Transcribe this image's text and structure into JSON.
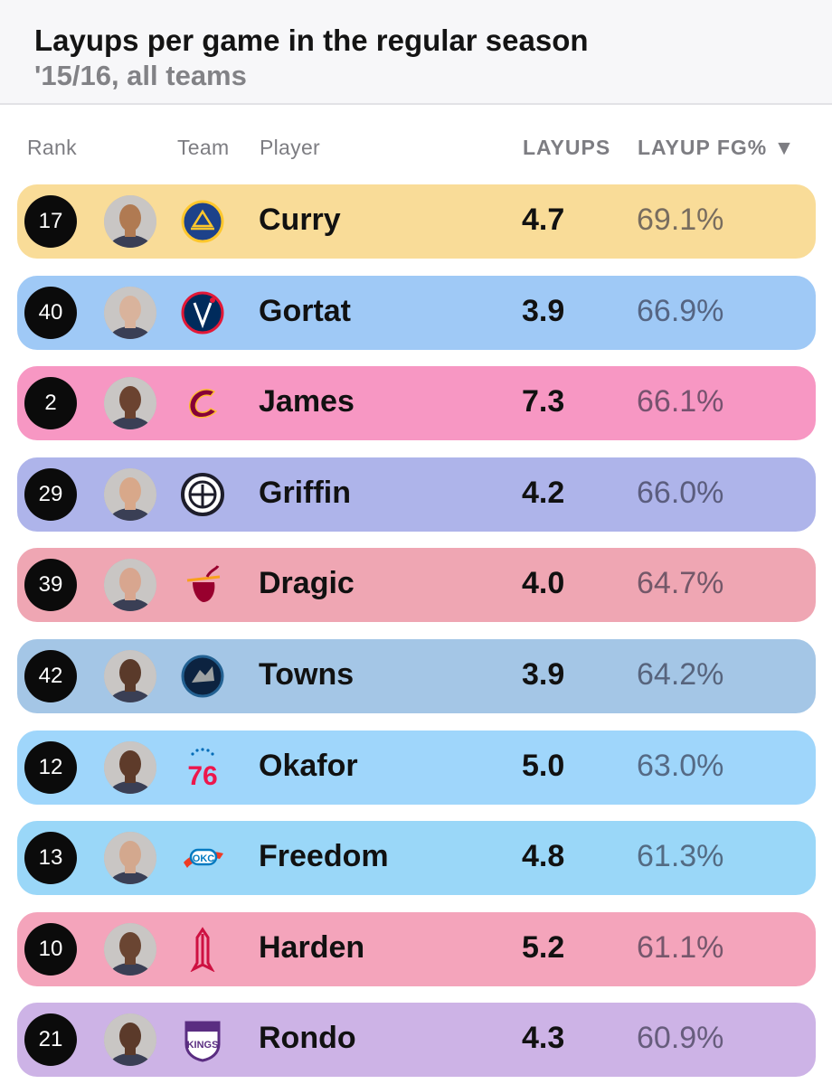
{
  "header": {
    "title": "Layups per game in the regular season",
    "subtitle": "'15/16, all teams"
  },
  "columns": {
    "rank": "Rank",
    "team": "Team",
    "player": "Player",
    "layups": "LAYUPS",
    "layup_fg": "LAYUP FG% ▼"
  },
  "rows": [
    {
      "rank": "17",
      "team_logo": "warriors-logo",
      "player": "Curry",
      "layups": "4.7",
      "layup_fg": "69.1%",
      "color": "#f9dc98",
      "logo_color": "#1d428a",
      "skin": "#b07a52"
    },
    {
      "rank": "40",
      "team_logo": "wizards-logo",
      "player": "Gortat",
      "layups": "3.9",
      "layup_fg": "66.9%",
      "color": "#9fc9f6",
      "logo_color": "#002b5c",
      "skin": "#d9b39c"
    },
    {
      "rank": "2",
      "team_logo": "cavaliers-logo",
      "player": "James",
      "layups": "7.3",
      "layup_fg": "66.1%",
      "color": "#f797c3",
      "logo_color": "#860038",
      "skin": "#6b4330"
    },
    {
      "rank": "29",
      "team_logo": "clippers-logo",
      "player": "Griffin",
      "layups": "4.2",
      "layup_fg": "66.0%",
      "color": "#aeb4ea",
      "logo_color": "#1d1d2b",
      "skin": "#d8a88a"
    },
    {
      "rank": "39",
      "team_logo": "heat-logo",
      "player": "Dragic",
      "layups": "4.0",
      "layup_fg": "64.7%",
      "color": "#efa6b3",
      "logo_color": "#98002e",
      "skin": "#d8a68f"
    },
    {
      "rank": "42",
      "team_logo": "timberwolves-logo",
      "player": "Towns",
      "layups": "3.9",
      "layup_fg": "64.2%",
      "color": "#a4c6e6",
      "logo_color": "#0c2340",
      "skin": "#5a3a2a"
    },
    {
      "rank": "12",
      "team_logo": "76ers-logo",
      "player": "Okafor",
      "layups": "5.0",
      "layup_fg": "63.0%",
      "color": "#9fd6fb",
      "logo_color": "#ed174c",
      "skin": "#5e3b2a"
    },
    {
      "rank": "13",
      "team_logo": "thunder-logo",
      "player": "Freedom",
      "layups": "4.8",
      "layup_fg": "61.3%",
      "color": "#9ad7f8",
      "logo_color": "#007ac1",
      "skin": "#d3a88e"
    },
    {
      "rank": "10",
      "team_logo": "rockets-logo",
      "player": "Harden",
      "layups": "5.2",
      "layup_fg": "61.1%",
      "color": "#f4a4bb",
      "logo_color": "#ce1141",
      "skin": "#6a4532"
    },
    {
      "rank": "21",
      "team_logo": "kings-logo",
      "player": "Rondo",
      "layups": "4.3",
      "layup_fg": "60.9%",
      "color": "#cdb3e6",
      "logo_color": "#5a2d81",
      "skin": "#5b3a2a"
    }
  ]
}
